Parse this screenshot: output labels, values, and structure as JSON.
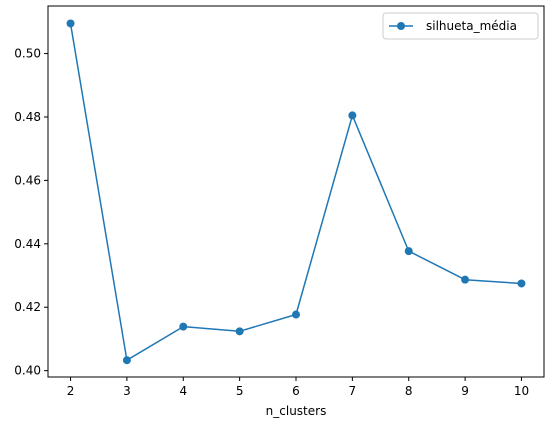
{
  "chart_data": {
    "type": "line",
    "title": "",
    "xlabel": "n_clusters",
    "ylabel": "",
    "x": [
      2,
      3,
      4,
      5,
      6,
      7,
      8,
      9,
      10
    ],
    "series": [
      {
        "name": "silhueta_média",
        "values": [
          0.5095,
          0.4033,
          0.4139,
          0.4124,
          0.4177,
          0.4805,
          0.4377,
          0.4287,
          0.4275
        ],
        "color": "#1f77b4",
        "marker": "circle"
      }
    ],
    "xticks": [
      "2",
      "3",
      "4",
      "5",
      "6",
      "7",
      "8",
      "9",
      "10"
    ],
    "yticks": [
      "0.40",
      "0.42",
      "0.44",
      "0.46",
      "0.48",
      "0.50"
    ],
    "xlim": [
      1.6,
      10.4
    ],
    "ylim": [
      0.398,
      0.515
    ],
    "grid": false,
    "legend": "top-right"
  }
}
